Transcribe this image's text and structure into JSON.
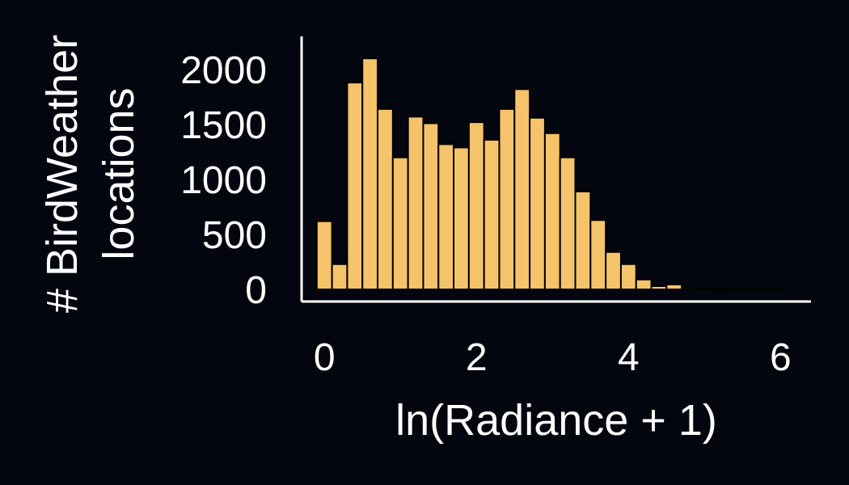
{
  "chart_data": {
    "type": "bar",
    "xlabel": "ln(Radiance + 1)",
    "ylabel_lines": [
      "# BirdWeather",
      "locations"
    ],
    "xlim": [
      -0.3,
      6.4
    ],
    "ylim": [
      -110,
      2300
    ],
    "xticks": [
      0,
      2,
      4,
      6
    ],
    "yticks": [
      0,
      500,
      1000,
      1500,
      2000
    ],
    "bin_width": 0.2,
    "bar_color": "#f5c36a",
    "bar_edge_color": "#000000",
    "background_color": "#04060f",
    "axis_color": "#ffffff",
    "bins": [
      {
        "x0": -0.1,
        "value": 620
      },
      {
        "x0": 0.1,
        "value": 230
      },
      {
        "x0": 0.3,
        "value": 1880
      },
      {
        "x0": 0.5,
        "value": 2100
      },
      {
        "x0": 0.7,
        "value": 1640
      },
      {
        "x0": 0.9,
        "value": 1200
      },
      {
        "x0": 1.1,
        "value": 1570
      },
      {
        "x0": 1.3,
        "value": 1510
      },
      {
        "x0": 1.5,
        "value": 1320
      },
      {
        "x0": 1.7,
        "value": 1290
      },
      {
        "x0": 1.9,
        "value": 1520
      },
      {
        "x0": 2.1,
        "value": 1360
      },
      {
        "x0": 2.3,
        "value": 1640
      },
      {
        "x0": 2.5,
        "value": 1820
      },
      {
        "x0": 2.7,
        "value": 1560
      },
      {
        "x0": 2.9,
        "value": 1420
      },
      {
        "x0": 3.1,
        "value": 1200
      },
      {
        "x0": 3.3,
        "value": 890
      },
      {
        "x0": 3.5,
        "value": 630
      },
      {
        "x0": 3.7,
        "value": 340
      },
      {
        "x0": 3.9,
        "value": 230
      },
      {
        "x0": 4.1,
        "value": 90
      },
      {
        "x0": 4.3,
        "value": 30
      },
      {
        "x0": 4.5,
        "value": 45
      },
      {
        "x0": 4.7,
        "value": 15
      },
      {
        "x0": 4.9,
        "value": 10
      },
      {
        "x0": 5.1,
        "value": 5
      },
      {
        "x0": 5.3,
        "value": 3
      },
      {
        "x0": 5.5,
        "value": 2
      },
      {
        "x0": 5.7,
        "value": 2
      },
      {
        "x0": 5.9,
        "value": 1
      }
    ]
  }
}
